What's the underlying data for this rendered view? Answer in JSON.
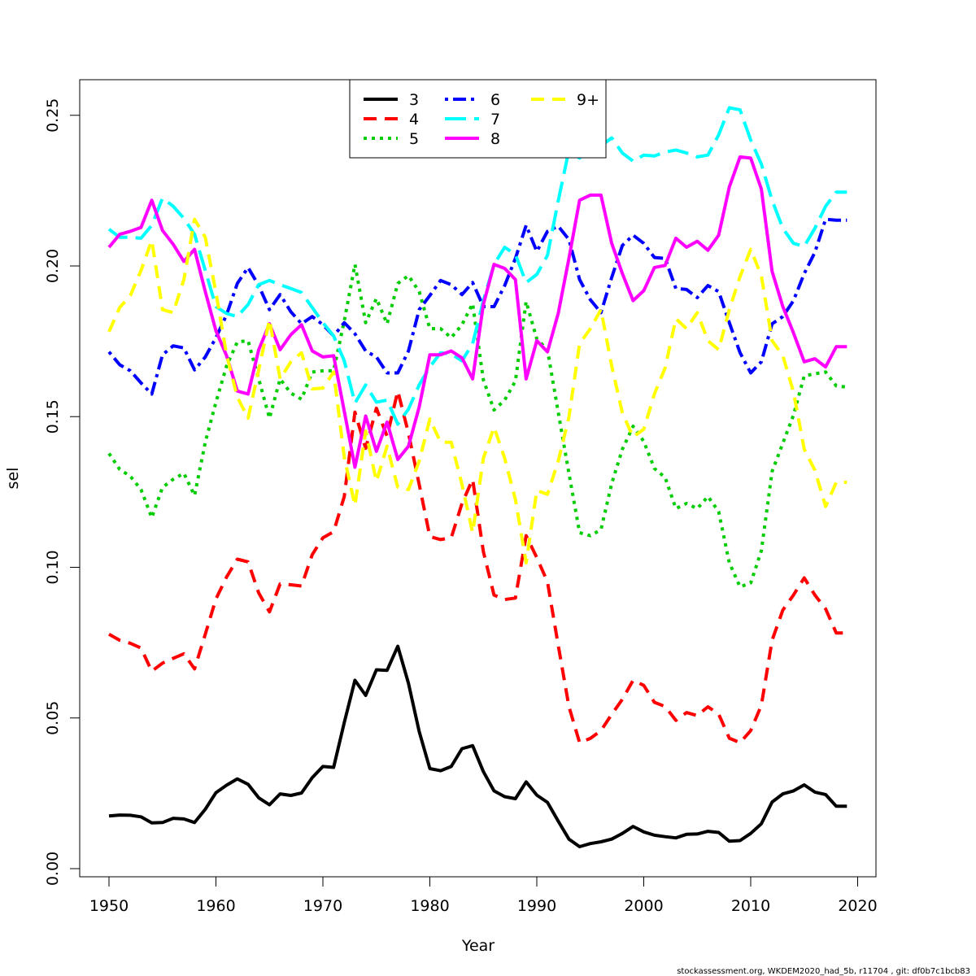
{
  "chart_data": {
    "type": "line",
    "xlabel": "Year",
    "ylabel": "sel",
    "xlim": [
      1950,
      2020
    ],
    "ylim": [
      0.0,
      0.25
    ],
    "x_ticks": [
      "1950",
      "1960",
      "1970",
      "1980",
      "1990",
      "2000",
      "2010",
      "2020"
    ],
    "y_ticks": [
      "0.00",
      "0.05",
      "0.10",
      "0.15",
      "0.20",
      "0.25"
    ],
    "legend_position": "top-center",
    "footnote": "stockassessment.org, WKDEM2020_had_5b, r11704 , git: df0b7c1bcb83",
    "x": [
      1950,
      1951,
      1952,
      1953,
      1954,
      1955,
      1956,
      1957,
      1958,
      1959,
      1960,
      1961,
      1962,
      1963,
      1964,
      1965,
      1966,
      1967,
      1968,
      1969,
      1970,
      1971,
      1972,
      1973,
      1974,
      1975,
      1976,
      1977,
      1978,
      1979,
      1980,
      1981,
      1982,
      1983,
      1984,
      1985,
      1986,
      1987,
      1988,
      1989,
      1990,
      1991,
      1992,
      1993,
      1994,
      1995,
      1996,
      1997,
      1998,
      1999,
      2000,
      2001,
      2002,
      2003,
      2004,
      2005,
      2006,
      2007,
      2008,
      2009,
      2010,
      2011,
      2012,
      2013,
      2014,
      2015,
      2016,
      2017,
      2018,
      2019
    ],
    "series": [
      {
        "name": "3",
        "color": "#000000",
        "dash": "solid",
        "values": [
          0.0175,
          0.0178,
          0.0177,
          0.0172,
          0.0152,
          0.0153,
          0.0167,
          0.0165,
          0.0153,
          0.0197,
          0.0252,
          0.0277,
          0.0298,
          0.028,
          0.0235,
          0.0212,
          0.0248,
          0.0243,
          0.0251,
          0.0302,
          0.0339,
          0.0336,
          0.0485,
          0.0625,
          0.0575,
          0.066,
          0.0658,
          0.0738,
          0.0615,
          0.0455,
          0.0332,
          0.0325,
          0.0339,
          0.0398,
          0.0408,
          0.0322,
          0.0258,
          0.0239,
          0.0232,
          0.0288,
          0.0244,
          0.022,
          0.0158,
          0.0098,
          0.0073,
          0.0083,
          0.0089,
          0.0098,
          0.0117,
          0.014,
          0.0122,
          0.0111,
          0.0106,
          0.0102,
          0.0114,
          0.0115,
          0.0124,
          0.012,
          0.0091,
          0.0093,
          0.0117,
          0.0149,
          0.0221,
          0.0248,
          0.0258,
          0.0278,
          0.0254,
          0.0246,
          0.0207,
          0.0207
        ]
      },
      {
        "name": "4",
        "color": "#ff0000",
        "dash": "dashed",
        "values": [
          0.0778,
          0.0758,
          0.0748,
          0.0732,
          0.0655,
          0.0682,
          0.0698,
          0.0713,
          0.0663,
          0.0778,
          0.0895,
          0.0968,
          0.1027,
          0.1018,
          0.0915,
          0.0852,
          0.0945,
          0.0942,
          0.0938,
          0.1042,
          0.1098,
          0.1118,
          0.1235,
          0.1515,
          0.1395,
          0.1528,
          0.1435,
          0.1585,
          0.1445,
          0.1275,
          0.1102,
          0.1092,
          0.1098,
          0.1212,
          0.1292,
          0.1052,
          0.0908,
          0.0893,
          0.0898,
          0.1105,
          0.1032,
          0.0952,
          0.0742,
          0.0538,
          0.0418,
          0.0432,
          0.0458,
          0.0512,
          0.0562,
          0.0625,
          0.0608,
          0.0552,
          0.0538,
          0.0492,
          0.0518,
          0.0508,
          0.0537,
          0.0513,
          0.0433,
          0.0418,
          0.0458,
          0.0542,
          0.0758,
          0.0858,
          0.0908,
          0.0965,
          0.0908,
          0.0862,
          0.0782,
          0.0782
        ]
      },
      {
        "name": "5",
        "color": "#00cd00",
        "dash": "dotted",
        "values": [
          0.1378,
          0.1325,
          0.1302,
          0.1258,
          0.1165,
          0.1265,
          0.1292,
          0.1312,
          0.1238,
          0.1415,
          0.1548,
          0.1668,
          0.1748,
          0.1752,
          0.1625,
          0.1495,
          0.1625,
          0.1578,
          0.1558,
          0.1648,
          0.1652,
          0.1652,
          0.1818,
          0.2005,
          0.1812,
          0.1892,
          0.1808,
          0.1942,
          0.1968,
          0.1915,
          0.1792,
          0.1792,
          0.1762,
          0.1805,
          0.1875,
          0.1622,
          0.1522,
          0.1555,
          0.1618,
          0.1882,
          0.1758,
          0.1722,
          0.1515,
          0.1312,
          0.1115,
          0.1105,
          0.1125,
          0.1278,
          0.1392,
          0.1468,
          0.1418,
          0.1328,
          0.1298,
          0.1195,
          0.1212,
          0.1195,
          0.1235,
          0.1185,
          0.1015,
          0.0935,
          0.0948,
          0.1055,
          0.1318,
          0.1412,
          0.1505,
          0.1635,
          0.1642,
          0.1648,
          0.1602,
          0.1598
        ]
      },
      {
        "name": "6",
        "color": "#0000ff",
        "dash": "dotdash",
        "values": [
          0.1715,
          0.1672,
          0.1652,
          0.1612,
          0.1575,
          0.1705,
          0.1735,
          0.1728,
          0.1655,
          0.1698,
          0.1762,
          0.1838,
          0.1942,
          0.1995,
          0.1935,
          0.1855,
          0.1905,
          0.1848,
          0.1808,
          0.1832,
          0.1805,
          0.1768,
          0.1812,
          0.1775,
          0.1718,
          0.1698,
          0.1645,
          0.1645,
          0.1718,
          0.1855,
          0.1902,
          0.1952,
          0.1938,
          0.1905,
          0.1945,
          0.1865,
          0.1865,
          0.1935,
          0.2025,
          0.2135,
          0.2048,
          0.2115,
          0.2132,
          0.2088,
          0.1955,
          0.1888,
          0.1845,
          0.1962,
          0.2068,
          0.2102,
          0.2075,
          0.2028,
          0.2025,
          0.1925,
          0.1922,
          0.1895,
          0.1935,
          0.1915,
          0.1812,
          0.1712,
          0.1645,
          0.1682,
          0.1808,
          0.1832,
          0.1885,
          0.1975,
          0.2045,
          0.2155,
          0.2152,
          0.2152
        ]
      },
      {
        "name": "7",
        "color": "#00ffff",
        "dash": "longdash",
        "values": [
          0.2122,
          0.2095,
          0.2095,
          0.2092,
          0.2135,
          0.2225,
          0.2198,
          0.2158,
          0.2105,
          0.1985,
          0.1865,
          0.1842,
          0.1832,
          0.1872,
          0.1938,
          0.1952,
          0.1938,
          0.1925,
          0.1912,
          0.1862,
          0.1812,
          0.1768,
          0.1685,
          0.1545,
          0.1605,
          0.1548,
          0.1555,
          0.1475,
          0.1525,
          0.1605,
          0.1665,
          0.1712,
          0.1708,
          0.1685,
          0.1742,
          0.1885,
          0.2005,
          0.2062,
          0.2038,
          0.1945,
          0.1972,
          0.2035,
          0.2215,
          0.2385,
          0.2358,
          0.2395,
          0.2398,
          0.2425,
          0.2375,
          0.2348,
          0.2368,
          0.2365,
          0.2378,
          0.2385,
          0.2375,
          0.2362,
          0.2368,
          0.2435,
          0.2525,
          0.2518,
          0.2418,
          0.2338,
          0.2218,
          0.2125,
          0.2075,
          0.2065,
          0.2125,
          0.2198,
          0.2245,
          0.2245
        ]
      },
      {
        "name": "8",
        "color": "#ff00ff",
        "dash": "solid",
        "values": [
          0.2062,
          0.2105,
          0.2115,
          0.2128,
          0.2218,
          0.2118,
          0.2072,
          0.2015,
          0.2055,
          0.1915,
          0.1785,
          0.1702,
          0.1585,
          0.1575,
          0.1722,
          0.1808,
          0.1722,
          0.1772,
          0.1805,
          0.1718,
          0.1698,
          0.1702,
          0.1518,
          0.1332,
          0.1502,
          0.1385,
          0.1482,
          0.1358,
          0.1402,
          0.1532,
          0.1705,
          0.1705,
          0.1718,
          0.1695,
          0.1625,
          0.1872,
          0.2005,
          0.1992,
          0.1955,
          0.1625,
          0.1752,
          0.1715,
          0.1842,
          0.2025,
          0.2218,
          0.2235,
          0.2235,
          0.2075,
          0.1975,
          0.1885,
          0.1918,
          0.1995,
          0.2002,
          0.2092,
          0.2062,
          0.2082,
          0.2052,
          0.2102,
          0.2262,
          0.2362,
          0.2358,
          0.2255,
          0.1982,
          0.1865,
          0.1778,
          0.1682,
          0.1692,
          0.1665,
          0.1732,
          0.1732
        ]
      },
      {
        "name": "9+",
        "color": "#ffff00",
        "dash": "dashed",
        "values": [
          0.1782,
          0.1862,
          0.1902,
          0.1985,
          0.2085,
          0.1855,
          0.1845,
          0.1955,
          0.2155,
          0.2095,
          0.1912,
          0.1705,
          0.1565,
          0.1495,
          0.1655,
          0.1822,
          0.1625,
          0.1682,
          0.1712,
          0.1592,
          0.1595,
          0.1648,
          0.1365,
          0.1205,
          0.1452,
          0.1285,
          0.1402,
          0.1265,
          0.1258,
          0.1352,
          0.1492,
          0.1415,
          0.1415,
          0.1275,
          0.1115,
          0.1362,
          0.1465,
          0.1362,
          0.1225,
          0.1015,
          0.1255,
          0.1242,
          0.1352,
          0.1498,
          0.1742,
          0.1792,
          0.1855,
          0.1668,
          0.1512,
          0.1432,
          0.1458,
          0.1575,
          0.1662,
          0.1825,
          0.1792,
          0.1845,
          0.1752,
          0.1722,
          0.1855,
          0.1965,
          0.2055,
          0.1968,
          0.1752,
          0.1702,
          0.1582,
          0.1392,
          0.1322,
          0.1202,
          0.1282,
          0.1282
        ]
      }
    ]
  }
}
